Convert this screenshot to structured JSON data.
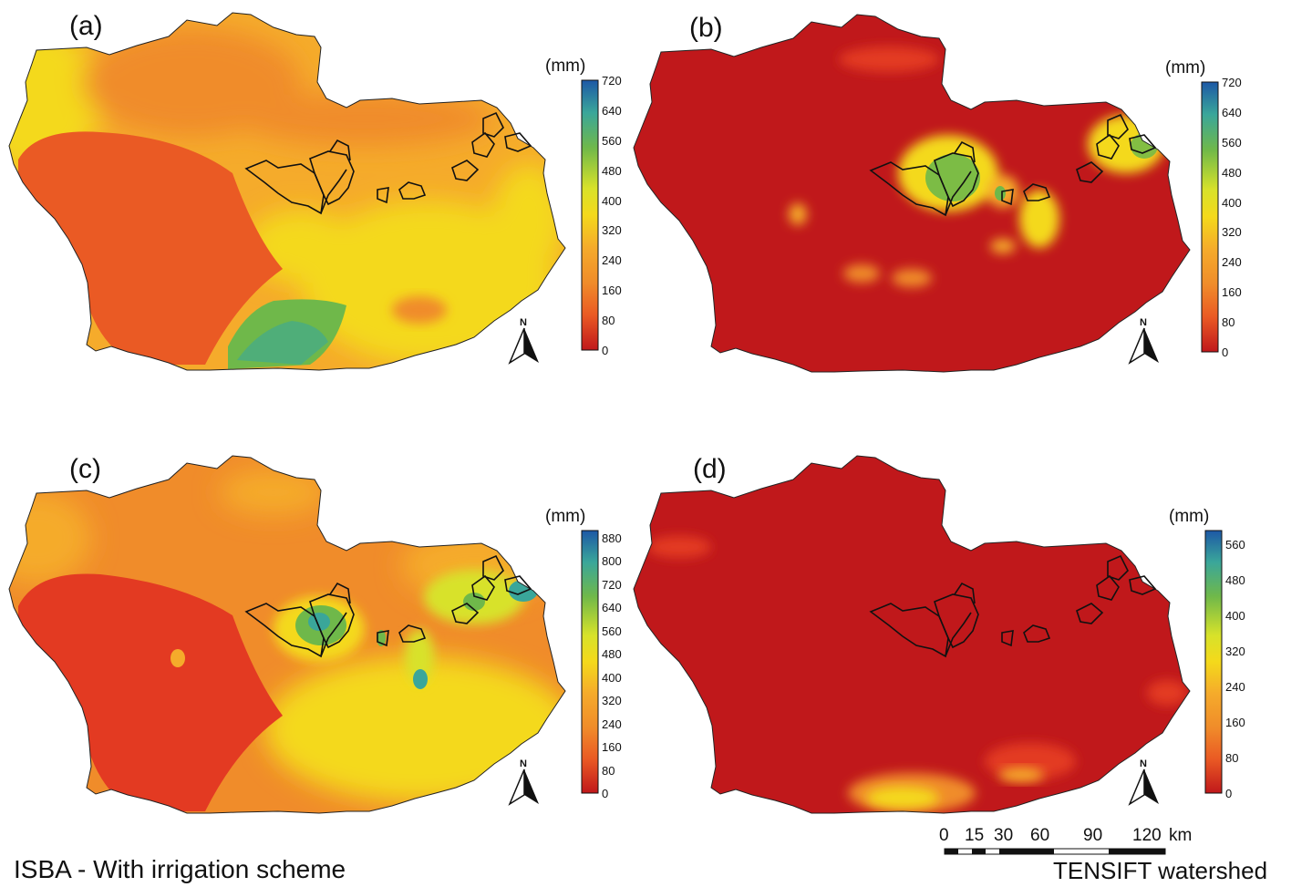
{
  "panels": [
    {
      "label": "(a)",
      "unit": "(mm)",
      "ticks": [
        "720",
        "640",
        "560",
        "480",
        "400",
        "320",
        "240",
        "160",
        "80",
        "0"
      ],
      "north": "N"
    },
    {
      "label": "(b)",
      "unit": "(mm)",
      "ticks": [
        "720",
        "640",
        "560",
        "480",
        "400",
        "320",
        "240",
        "160",
        "80",
        "0"
      ],
      "north": "N"
    },
    {
      "label": "(c)",
      "unit": "(mm)",
      "ticks": [
        "880",
        "800",
        "720",
        "640",
        "560",
        "480",
        "400",
        "320",
        "240",
        "160",
        "80",
        "0"
      ],
      "north": "N"
    },
    {
      "label": "(d)",
      "unit": "(mm)",
      "ticks": [
        "560",
        "480",
        "400",
        "320",
        "240",
        "160",
        "80",
        "0"
      ],
      "north": "N"
    }
  ],
  "scale_bar": {
    "ticks": [
      "0",
      "15",
      "30",
      "60",
      "90",
      "120"
    ],
    "unit": "km"
  },
  "captions": {
    "left": "ISBA - With irrigation scheme",
    "right": "TENSIFT watershed"
  },
  "colors": {
    "red_dark": "#c0181b",
    "red": "#e33a22",
    "orange_red": "#ea5a24",
    "orange": "#f08c2a",
    "orange_light": "#f5ab2b",
    "yellow": "#f4d91b",
    "yellow_green": "#d8e22a",
    "green": "#6fb84a",
    "teal": "#3aa69a",
    "blue": "#1d58a6"
  }
}
